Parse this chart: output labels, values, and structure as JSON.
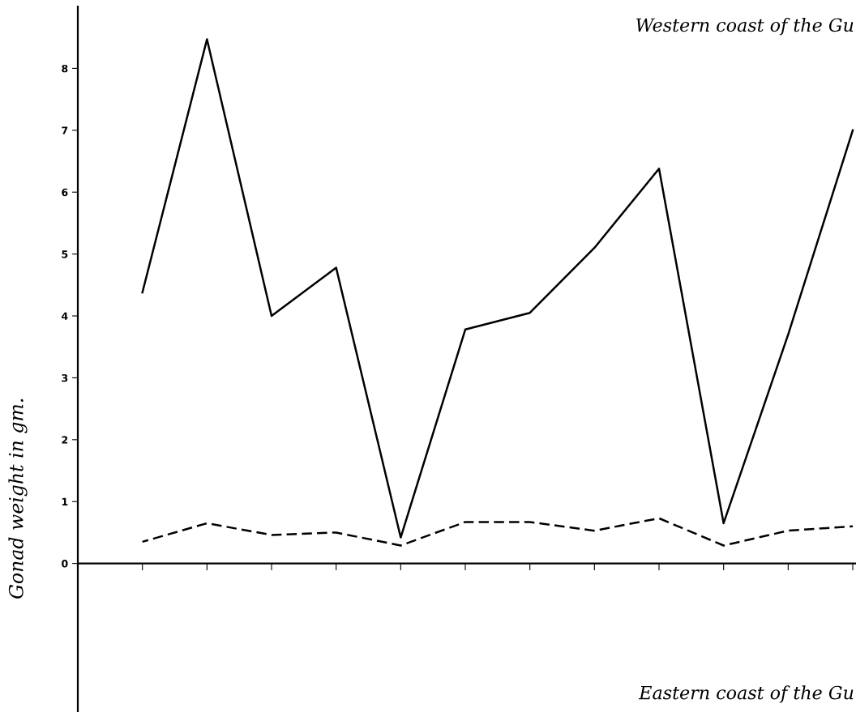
{
  "chart_data": {
    "type": "line",
    "ylabel": "Gonad weight in gm.",
    "annotations": [
      "Western coast of the Gu",
      "Eastern coast of the Gu"
    ],
    "categories": [
      null,
      null,
      null,
      null,
      null,
      null,
      null,
      null,
      null,
      null,
      null,
      null
    ],
    "series": [
      {
        "color": "#000000",
        "line_style": "solid",
        "values": [
          4.38,
          8.47,
          4.0,
          4.78,
          0.42,
          3.78,
          4.05,
          5.1,
          6.38,
          0.65,
          3.7,
          7.0
        ]
      },
      {
        "color": "#000000",
        "line_style": "dashed",
        "values": [
          0.35,
          0.65,
          0.46,
          0.5,
          0.29,
          0.67,
          0.67,
          0.53,
          0.73,
          0.29,
          0.53,
          0.6
        ]
      }
    ],
    "ylim": [
      -2.4,
      9.0
    ],
    "yticks": [
      0,
      1,
      2,
      3,
      4,
      5,
      6,
      7,
      8
    ]
  }
}
